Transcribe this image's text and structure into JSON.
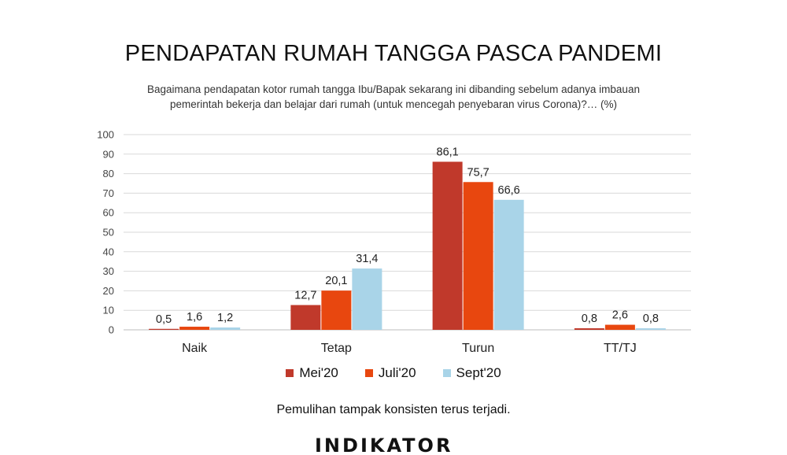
{
  "title": "PENDAPATAN RUMAH TANGGA PASCA PANDEMI",
  "subtitle_line1": "Bagaimana pendapatan kotor rumah tangga Ibu/Bapak sekarang ini dibanding sebelum adanya imbauan",
  "subtitle_line2": "pemerintah bekerja dan belajar dari rumah (untuk mencegah penyebaran virus Corona)?… (%)",
  "note": "Pemulihan tampak konsisten terus terjadi.",
  "logo_text": "INDIKATOR",
  "chart_data": {
    "type": "bar",
    "categories": [
      "Naik",
      "Tetap",
      "Turun",
      "TT/TJ"
    ],
    "series": [
      {
        "name": "Mei'20",
        "color": "#c0392b",
        "values": [
          0.5,
          12.7,
          86.1,
          0.8
        ],
        "labels": [
          "0,5",
          "12,7",
          "86,1",
          "0,8"
        ]
      },
      {
        "name": "Juli'20",
        "color": "#e8470f",
        "values": [
          1.6,
          20.1,
          75.7,
          2.6
        ],
        "labels": [
          "1,6",
          "20,1",
          "75,7",
          "2,6"
        ]
      },
      {
        "name": "Sept'20",
        "color": "#a9d4e8",
        "values": [
          1.2,
          31.4,
          66.6,
          0.8
        ],
        "labels": [
          "1,2",
          "31,4",
          "66,6",
          "0,8"
        ]
      }
    ],
    "ylim": [
      0,
      100
    ],
    "yticks": [
      0,
      10,
      20,
      30,
      40,
      50,
      60,
      70,
      80,
      90,
      100
    ],
    "grid": true,
    "legend_position": "bottom"
  }
}
